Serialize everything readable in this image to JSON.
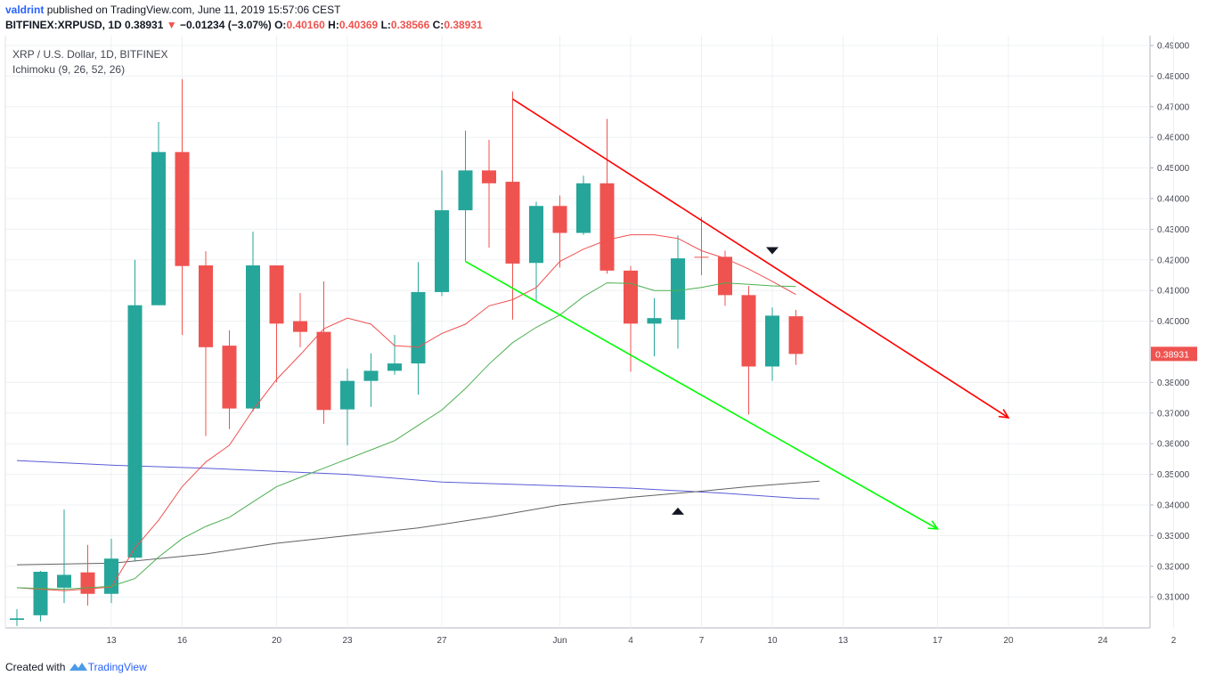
{
  "header": {
    "user": "valdrint",
    "published": "published on TradingView.com, June 11, 2019 15:57:06 CEST",
    "symbol": "BITFINEX:XRPUSD, 1D",
    "last": "0.38931",
    "change_arrow": "▼",
    "change": "−0.01234 (−3.07%)",
    "open_label": "O:",
    "open": "0.40160",
    "high_label": "H:",
    "high": "0.40369",
    "low_label": "L:",
    "low": "0.38566",
    "close_label": "C:",
    "close": "0.38931"
  },
  "legend": {
    "title": "XRP / U.S. Dollar, 1D, BITFINEX",
    "indicator": "Ichimoku (9, 26, 52, 26)"
  },
  "footer": {
    "created_with": "Created with",
    "brand": "TradingView"
  },
  "colors": {
    "up": "#26a69a",
    "down": "#ef5350",
    "tenkan": "#f05050",
    "kijun": "#4caf50",
    "span_a": "#5b5bd6",
    "span_b": "#616161",
    "trend_upper": "#ff0000",
    "trend_lower": "#00ff00",
    "grid": "#edf0f3",
    "price_tag": "#ef5350"
  },
  "chart_data": {
    "type": "candlestick",
    "y_ticks": [
      "0.49000",
      "0.48000",
      "0.47000",
      "0.46000",
      "0.45000",
      "0.44000",
      "0.43000",
      "0.42000",
      "0.41000",
      "0.40000",
      "0.38000",
      "0.37000",
      "0.36000",
      "0.35000",
      "0.34000",
      "0.33000",
      "0.32000",
      "0.31000"
    ],
    "x_ticks": [
      {
        "label": "13",
        "day": 4
      },
      {
        "label": "16",
        "day": 7
      },
      {
        "label": "20",
        "day": 11
      },
      {
        "label": "23",
        "day": 14
      },
      {
        "label": "27",
        "day": 18
      },
      {
        "label": "Jun",
        "day": 23
      },
      {
        "label": "4",
        "day": 26
      },
      {
        "label": "7",
        "day": 29
      },
      {
        "label": "10",
        "day": 32
      },
      {
        "label": "13",
        "day": 35
      },
      {
        "label": "17",
        "day": 39
      },
      {
        "label": "20",
        "day": 42
      },
      {
        "label": "24",
        "day": 46
      },
      {
        "label": "2",
        "day": 49
      }
    ],
    "last_price": "0.38931",
    "candles": [
      {
        "o": 0.3025,
        "h": 0.306,
        "l": 0.3005,
        "c": 0.303
      },
      {
        "o": 0.304,
        "h": 0.3185,
        "l": 0.302,
        "c": 0.3182
      },
      {
        "o": 0.313,
        "h": 0.3385,
        "l": 0.308,
        "c": 0.3172
      },
      {
        "o": 0.318,
        "h": 0.327,
        "l": 0.3072,
        "c": 0.311
      },
      {
        "o": 0.311,
        "h": 0.329,
        "l": 0.308,
        "c": 0.3225
      },
      {
        "o": 0.3228,
        "h": 0.42,
        "l": 0.3215,
        "c": 0.4052
      },
      {
        "o": 0.4052,
        "h": 0.465,
        "l": 0.4052,
        "c": 0.4552
      },
      {
        "o": 0.4552,
        "h": 0.479,
        "l": 0.3955,
        "c": 0.418
      },
      {
        "o": 0.4182,
        "h": 0.4228,
        "l": 0.3625,
        "c": 0.3915
      },
      {
        "o": 0.392,
        "h": 0.397,
        "l": 0.3648,
        "c": 0.3715
      },
      {
        "o": 0.3715,
        "h": 0.4292,
        "l": 0.3705,
        "c": 0.4182
      },
      {
        "o": 0.4182,
        "h": 0.4182,
        "l": 0.38,
        "c": 0.3992
      },
      {
        "o": 0.4,
        "h": 0.4092,
        "l": 0.3915,
        "c": 0.3965
      },
      {
        "o": 0.3965,
        "h": 0.413,
        "l": 0.3665,
        "c": 0.371
      },
      {
        "o": 0.3712,
        "h": 0.3845,
        "l": 0.3595,
        "c": 0.3805
      },
      {
        "o": 0.3805,
        "h": 0.3895,
        "l": 0.372,
        "c": 0.3838
      },
      {
        "o": 0.3838,
        "h": 0.3955,
        "l": 0.3825,
        "c": 0.3862
      },
      {
        "o": 0.3862,
        "h": 0.4193,
        "l": 0.376,
        "c": 0.4095
      },
      {
        "o": 0.4095,
        "h": 0.4492,
        "l": 0.4082,
        "c": 0.4362
      },
      {
        "o": 0.4362,
        "h": 0.4622,
        "l": 0.4195,
        "c": 0.4492
      },
      {
        "o": 0.4492,
        "h": 0.4592,
        "l": 0.424,
        "c": 0.445
      },
      {
        "o": 0.4455,
        "h": 0.475,
        "l": 0.4005,
        "c": 0.4188
      },
      {
        "o": 0.419,
        "h": 0.439,
        "l": 0.4065,
        "c": 0.4376
      },
      {
        "o": 0.4376,
        "h": 0.441,
        "l": 0.4175,
        "c": 0.4288
      },
      {
        "o": 0.4288,
        "h": 0.4475,
        "l": 0.4282,
        "c": 0.445
      },
      {
        "o": 0.445,
        "h": 0.466,
        "l": 0.4155,
        "c": 0.4165
      },
      {
        "o": 0.4165,
        "h": 0.418,
        "l": 0.3835,
        "c": 0.3992
      },
      {
        "o": 0.3992,
        "h": 0.4075,
        "l": 0.3885,
        "c": 0.401
      },
      {
        "o": 0.4005,
        "h": 0.428,
        "l": 0.391,
        "c": 0.4205
      },
      {
        "o": 0.421,
        "h": 0.434,
        "l": 0.415,
        "c": 0.4208
      },
      {
        "o": 0.421,
        "h": 0.423,
        "l": 0.405,
        "c": 0.4085
      },
      {
        "o": 0.4085,
        "h": 0.4115,
        "l": 0.3695,
        "c": 0.3852
      },
      {
        "o": 0.3852,
        "h": 0.4045,
        "l": 0.3805,
        "c": 0.4018
      },
      {
        "o": 0.4016,
        "h": 0.4037,
        "l": 0.3857,
        "c": 0.3893
      }
    ],
    "tenkan": [
      [
        0,
        0.313
      ],
      [
        2,
        0.312
      ],
      [
        4,
        0.3132
      ],
      [
        5,
        0.326
      ],
      [
        6,
        0.335
      ],
      [
        7,
        0.346
      ],
      [
        8,
        0.354
      ],
      [
        9,
        0.3595
      ],
      [
        10,
        0.371
      ],
      [
        11,
        0.381
      ],
      [
        12,
        0.389
      ],
      [
        13,
        0.3975
      ],
      [
        14,
        0.401
      ],
      [
        15,
        0.399
      ],
      [
        16,
        0.392
      ],
      [
        17,
        0.3915
      ],
      [
        18,
        0.396
      ],
      [
        19,
        0.399
      ],
      [
        20,
        0.405
      ],
      [
        21,
        0.407
      ],
      [
        22,
        0.411
      ],
      [
        23,
        0.4195
      ],
      [
        24,
        0.4235
      ],
      [
        25,
        0.4265
      ],
      [
        26,
        0.4282
      ],
      [
        27,
        0.4282
      ],
      [
        28,
        0.427
      ],
      [
        29,
        0.423
      ],
      [
        30,
        0.4205
      ],
      [
        31,
        0.417
      ],
      [
        32,
        0.413
      ],
      [
        33,
        0.4087
      ]
    ],
    "kijun": [
      [
        0,
        0.313
      ],
      [
        2,
        0.3125
      ],
      [
        4,
        0.3135
      ],
      [
        5,
        0.316
      ],
      [
        6,
        0.323
      ],
      [
        7,
        0.329
      ],
      [
        8,
        0.333
      ],
      [
        9,
        0.336
      ],
      [
        10,
        0.341
      ],
      [
        11,
        0.346
      ],
      [
        12,
        0.349
      ],
      [
        13,
        0.352
      ],
      [
        14,
        0.355
      ],
      [
        15,
        0.358
      ],
      [
        16,
        0.361
      ],
      [
        17,
        0.366
      ],
      [
        18,
        0.371
      ],
      [
        19,
        0.378
      ],
      [
        20,
        0.386
      ],
      [
        21,
        0.393
      ],
      [
        22,
        0.398
      ],
      [
        23,
        0.402
      ],
      [
        24,
        0.408
      ],
      [
        25,
        0.4125
      ],
      [
        26,
        0.4123
      ],
      [
        27,
        0.41
      ],
      [
        28,
        0.41
      ],
      [
        29,
        0.411
      ],
      [
        30,
        0.4125
      ],
      [
        31,
        0.412
      ],
      [
        32,
        0.4115
      ],
      [
        33,
        0.4113
      ]
    ],
    "span_a": [
      [
        0,
        0.3545
      ],
      [
        4,
        0.353
      ],
      [
        8,
        0.352
      ],
      [
        11,
        0.351
      ],
      [
        14,
        0.35
      ],
      [
        18,
        0.3475
      ],
      [
        22,
        0.3465
      ],
      [
        26,
        0.3455
      ],
      [
        30,
        0.3438
      ],
      [
        33,
        0.3422
      ],
      [
        34,
        0.342
      ]
    ],
    "span_b": [
      [
        0,
        0.3205
      ],
      [
        4,
        0.321
      ],
      [
        8,
        0.324
      ],
      [
        11,
        0.3275
      ],
      [
        14,
        0.33
      ],
      [
        17,
        0.3325
      ],
      [
        20,
        0.336
      ],
      [
        23,
        0.34
      ],
      [
        26,
        0.3425
      ],
      [
        29,
        0.3445
      ],
      [
        31,
        0.346
      ],
      [
        34,
        0.3478
      ]
    ],
    "trend_upper": {
      "from": [
        21,
        0.4725
      ],
      "to": [
        42,
        0.3685
      ]
    },
    "trend_lower": {
      "from": [
        19,
        0.4195
      ],
      "to": [
        39,
        0.3322
      ]
    },
    "markers": [
      {
        "type": "down",
        "day": 32,
        "price": 0.423
      },
      {
        "type": "up",
        "day": 28,
        "price": 0.338
      }
    ]
  }
}
